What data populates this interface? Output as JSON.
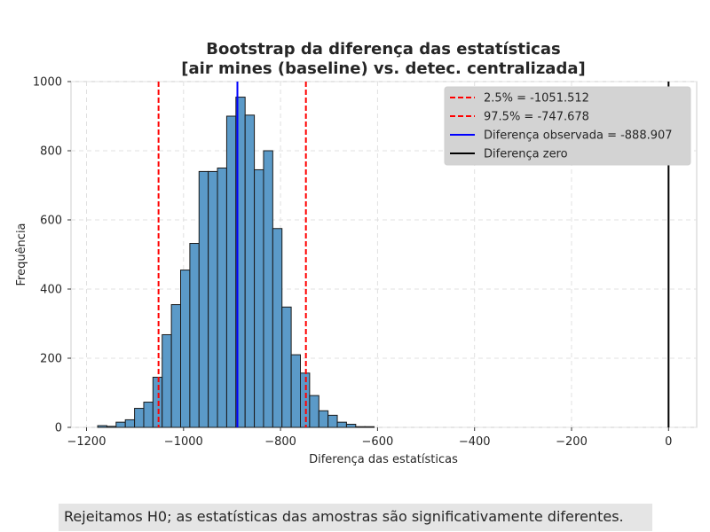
{
  "chart_data": {
    "type": "bar",
    "title": [
      "Bootstrap da diferença das estatísticas",
      "[air mines (baseline) vs. detec. centralizada]"
    ],
    "xlabel": "Diferença das estatísticas",
    "ylabel": "Frequência",
    "xlim": [
      -1232,
      58
    ],
    "ylim": [
      0,
      1000
    ],
    "xticks": [
      -1200,
      -1000,
      -800,
      -600,
      -400,
      -200,
      0
    ],
    "xtick_labels": [
      "−1200",
      "−1000",
      "−800",
      "−600",
      "−400",
      "−200",
      "0"
    ],
    "yticks": [
      0,
      200,
      400,
      600,
      800,
      1000
    ],
    "ytick_labels": [
      "0",
      "200",
      "400",
      "600",
      "800",
      "1000"
    ],
    "grid": true,
    "legend_position": "top-right",
    "histogram": {
      "bin_width": 19,
      "bins": [
        {
          "x0": -1177,
          "count": 5
        },
        {
          "x0": -1158,
          "count": 3
        },
        {
          "x0": -1139,
          "count": 15
        },
        {
          "x0": -1120,
          "count": 22
        },
        {
          "x0": -1101,
          "count": 55
        },
        {
          "x0": -1082,
          "count": 73
        },
        {
          "x0": -1063,
          "count": 145
        },
        {
          "x0": -1044,
          "count": 268
        },
        {
          "x0": -1025,
          "count": 355
        },
        {
          "x0": -1006,
          "count": 455
        },
        {
          "x0": -987,
          "count": 532
        },
        {
          "x0": -968,
          "count": 740
        },
        {
          "x0": -949,
          "count": 740
        },
        {
          "x0": -930,
          "count": 750
        },
        {
          "x0": -911,
          "count": 900
        },
        {
          "x0": -892,
          "count": 955
        },
        {
          "x0": -873,
          "count": 903
        },
        {
          "x0": -854,
          "count": 745
        },
        {
          "x0": -835,
          "count": 800
        },
        {
          "x0": -816,
          "count": 575
        },
        {
          "x0": -797,
          "count": 348
        },
        {
          "x0": -778,
          "count": 210
        },
        {
          "x0": -759,
          "count": 157
        },
        {
          "x0": -740,
          "count": 92
        },
        {
          "x0": -721,
          "count": 48
        },
        {
          "x0": -702,
          "count": 35
        },
        {
          "x0": -683,
          "count": 15
        },
        {
          "x0": -664,
          "count": 9
        },
        {
          "x0": -645,
          "count": 2
        },
        {
          "x0": -626,
          "count": 2
        }
      ],
      "color": "#5b9ac8",
      "edgecolor": "#1a1a1a"
    },
    "vlines": [
      {
        "label": "2.5% = -1051.512",
        "x": -1051.512,
        "color": "#ff0000",
        "style": "dashed"
      },
      {
        "label": "97.5% = -747.678",
        "x": -747.678,
        "color": "#ff0000",
        "style": "dashed"
      },
      {
        "label": "Diferença observada = -888.907",
        "x": -888.907,
        "color": "#0000ff",
        "style": "solid"
      },
      {
        "label": "Diferença zero",
        "x": 0,
        "color": "#000000",
        "style": "solid"
      }
    ]
  },
  "conclusion": "Rejeitamos H0; as estatísticas das amostras são significativamente diferentes."
}
